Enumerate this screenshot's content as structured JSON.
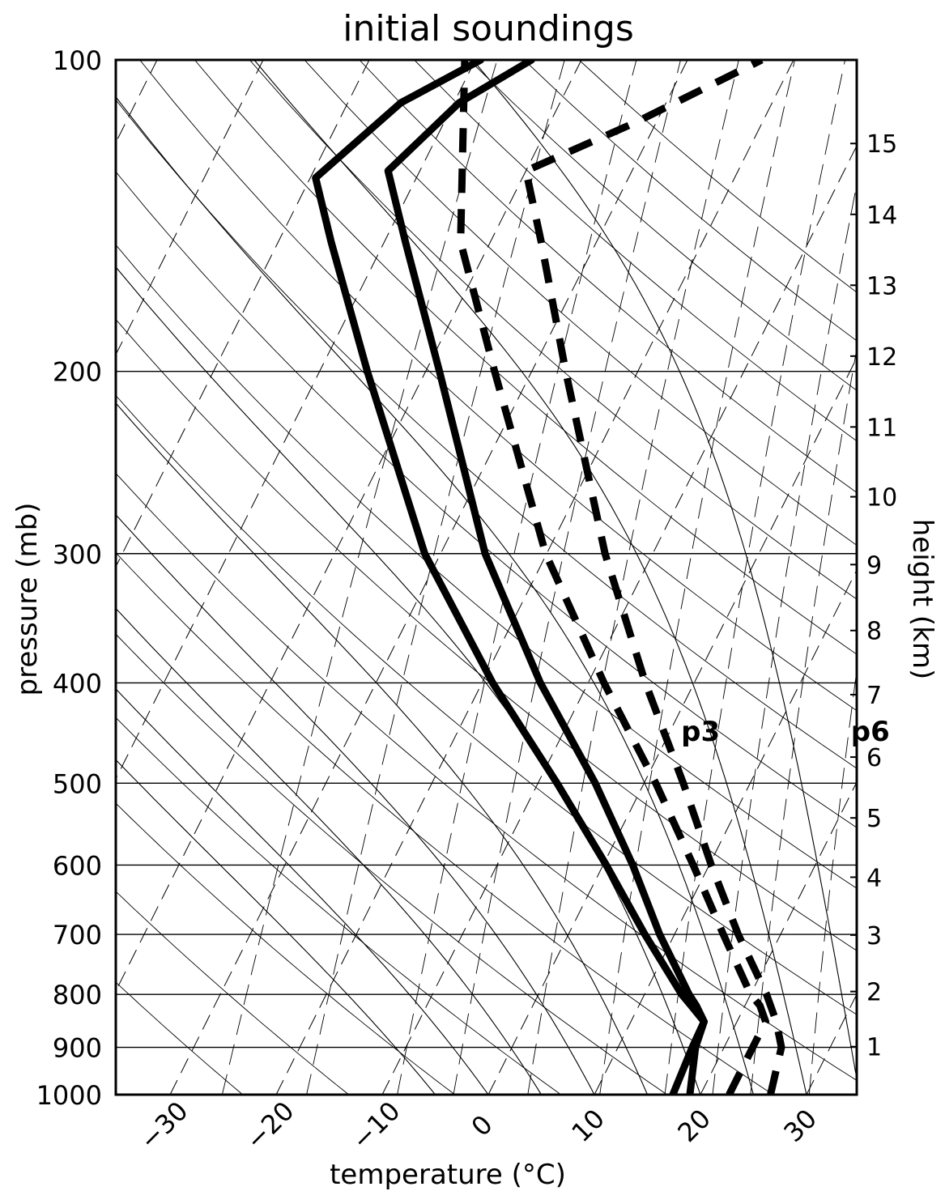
{
  "chart_data": {
    "type": "line",
    "diagram": "skew-T log-P",
    "title": "initial soundings",
    "xlabel": "temperature (°C)",
    "ylabel": "pressure (mb)",
    "ylabel_right": "height (km)",
    "pressure_ticks": [
      100,
      200,
      300,
      400,
      500,
      600,
      700,
      800,
      900,
      1000
    ],
    "temperature_ticks": [
      -30,
      -20,
      -10,
      0,
      10,
      20,
      30
    ],
    "height_ticks": [
      1,
      2,
      3,
      4,
      5,
      6,
      7,
      8,
      9,
      10,
      11,
      12,
      13,
      14,
      15
    ],
    "pressure_range": [
      1000,
      100
    ],
    "log_pressure_axis": true,
    "series": [
      {
        "name": "p3",
        "label_pos": {
          "p": 455,
          "t": 1.5
        },
        "temperature": {
          "style": "solid",
          "points": [
            [
              1000,
              17.4
            ],
            [
              900,
              17.0
            ],
            [
              850,
              16.9
            ],
            [
              820,
              14.9
            ],
            [
              800,
              13.5
            ],
            [
              700,
              7.2
            ],
            [
              600,
              0.3
            ],
            [
              500,
              -8.2
            ],
            [
              400,
              -19.0
            ],
            [
              300,
              -31.5
            ],
            [
              200,
              -45.5
            ],
            [
              150,
              -55.0
            ],
            [
              130,
              -59.5
            ],
            [
              110,
              -55.0
            ],
            [
              100,
              -49.5
            ]
          ]
        },
        "dewpoint": {
          "style": "solid",
          "points": [
            [
              1000,
              19.0
            ],
            [
              900,
              17.3
            ],
            [
              850,
              16.9
            ],
            [
              820,
              15.4
            ],
            [
              800,
              14.2
            ],
            [
              700,
              8.6
            ],
            [
              600,
              2.8
            ],
            [
              500,
              -4.6
            ],
            [
              400,
              -14.5
            ],
            [
              300,
              -25.8
            ],
            [
              200,
              -38.7
            ],
            [
              150,
              -48.0
            ],
            [
              128,
              -53.0
            ],
            [
              110,
              -49.5
            ],
            [
              100,
              -44.7
            ]
          ]
        }
      },
      {
        "name": "p6",
        "label_pos": {
          "p": 455,
          "t": 17.5
        },
        "temperature": {
          "style": "dashed",
          "points": [
            [
              1000,
              22.7
            ],
            [
              900,
              22.7
            ],
            [
              850,
              22.7
            ],
            [
              820,
              21.4
            ],
            [
              800,
              20.0
            ],
            [
              700,
              14.6
            ],
            [
              600,
              8.5
            ],
            [
              500,
              1.1
            ],
            [
              400,
              -8.5
            ],
            [
              300,
              -20.1
            ],
            [
              200,
              -33.5
            ],
            [
              150,
              -42.8
            ],
            [
              100,
              -51.0
            ]
          ]
        },
        "dewpoint": {
          "style": "dashed",
          "points": [
            [
              1000,
              26.6
            ],
            [
              900,
              25.4
            ],
            [
              850,
              23.7
            ],
            [
              800,
              21.5
            ],
            [
              700,
              16.0
            ],
            [
              600,
              10.2
            ],
            [
              500,
              3.7
            ],
            [
              400,
              -4.6
            ],
            [
              300,
              -14.5
            ],
            [
              200,
              -26.8
            ],
            [
              150,
              -35.2
            ],
            [
              128,
              -40.0
            ],
            [
              115,
              -32.0
            ],
            [
              100,
              -23.0
            ]
          ]
        }
      }
    ]
  }
}
